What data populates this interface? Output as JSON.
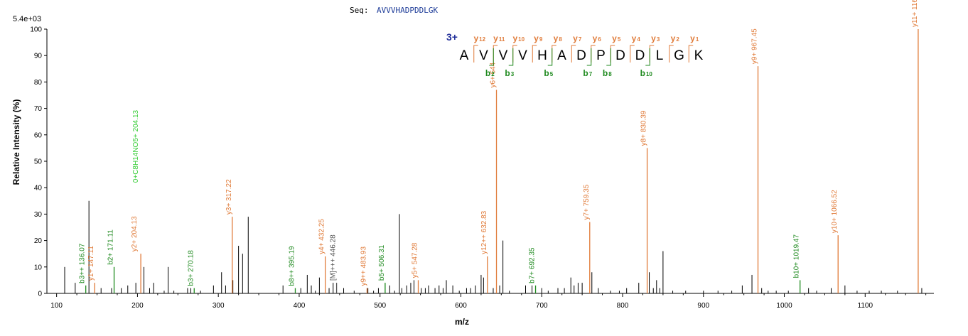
{
  "header": {
    "seq_label": "Seq:",
    "seq_value": "AVVVHADPDDLGK",
    "max_intensity": "5.4e+03"
  },
  "colors": {
    "y_ion": "#e07b39",
    "b_ion": "#1f8a1f",
    "b_ion_light": "#33cc33",
    "other": "#000000",
    "internal": "#555555"
  },
  "chart_data": {
    "type": "bar",
    "title": "",
    "xlabel": "m/z",
    "ylabel": "Relative   Intensity (%)",
    "xlim": [
      88,
      1185
    ],
    "ylim": [
      0,
      100
    ],
    "x_ticks": [
      100,
      200,
      300,
      400,
      500,
      600,
      700,
      800,
      900,
      1000,
      1100
    ],
    "y_ticks": [
      0,
      10,
      20,
      30,
      40,
      50,
      60,
      70,
      80,
      90,
      100
    ],
    "grid": false,
    "labeled_peaks": [
      {
        "mz": 136.07,
        "intensity": 3,
        "label": "b3++ 136.07",
        "ion": "b"
      },
      {
        "mz": 147.11,
        "intensity": 4,
        "label": "y1+ 147.11",
        "ion": "y"
      },
      {
        "mz": 171.11,
        "intensity": 10,
        "label": "b2+ 171.11",
        "ion": "b"
      },
      {
        "mz": 204.13,
        "intensity": 15,
        "label": "y2+ 204.13",
        "ion": "y"
      },
      {
        "mz": 204.13,
        "intensity": 15,
        "label": "0+C8H14NO5+ 204.13",
        "ion": "b_light"
      },
      {
        "mz": 270.18,
        "intensity": 2,
        "label": "b3+ 270.18",
        "ion": "b"
      },
      {
        "mz": 317.22,
        "intensity": 29,
        "label": "y3+ 317.22",
        "ion": "y"
      },
      {
        "mz": 395.19,
        "intensity": 2,
        "label": "b8++ 395.19",
        "ion": "b"
      },
      {
        "mz": 432.25,
        "intensity": 14,
        "label": "y4+ 432.25",
        "ion": "y"
      },
      {
        "mz": 446.28,
        "intensity": 4,
        "label": "[M]+++ 446.28",
        "ion": "internal"
      },
      {
        "mz": 483.93,
        "intensity": 2,
        "label": "y9++ 483.93",
        "ion": "y"
      },
      {
        "mz": 506.31,
        "intensity": 4,
        "label": "b5+ 506.31",
        "ion": "b"
      },
      {
        "mz": 547.28,
        "intensity": 5,
        "label": "y5+ 547.28",
        "ion": "y"
      },
      {
        "mz": 632.83,
        "intensity": 14,
        "label": "y12++ 632.83",
        "ion": "y"
      },
      {
        "mz": 644.0,
        "intensity": 77,
        "label": "y6+ 644",
        "ion": "y"
      },
      {
        "mz": 692.35,
        "intensity": 3,
        "label": "b7+ 692.35",
        "ion": "b"
      },
      {
        "mz": 759.35,
        "intensity": 27,
        "label": "y7+ 759.35",
        "ion": "y"
      },
      {
        "mz": 830.39,
        "intensity": 55,
        "label": "y8+ 830.39",
        "ion": "y"
      },
      {
        "mz": 967.45,
        "intensity": 86,
        "label": "y9+ 967.45",
        "ion": "y"
      },
      {
        "mz": 1019.47,
        "intensity": 5,
        "label": "b10+ 1019.47",
        "ion": "b"
      },
      {
        "mz": 1066.52,
        "intensity": 22,
        "label": "y10+ 1066.52",
        "ion": "y"
      },
      {
        "mz": 1165.59,
        "intensity": 100,
        "label": "y11+ 1165.59",
        "ion": "y"
      }
    ],
    "unlabeled_peaks": [
      [
        110,
        10
      ],
      [
        123,
        4
      ],
      [
        140,
        35
      ],
      [
        155,
        2
      ],
      [
        168,
        2
      ],
      [
        180,
        2
      ],
      [
        188,
        3
      ],
      [
        198,
        4
      ],
      [
        208,
        10
      ],
      [
        215,
        2
      ],
      [
        220,
        4
      ],
      [
        233,
        1
      ],
      [
        238,
        10
      ],
      [
        245,
        1
      ],
      [
        262,
        2
      ],
      [
        266,
        2
      ],
      [
        278,
        1
      ],
      [
        294,
        3
      ],
      [
        304,
        8
      ],
      [
        309,
        3
      ],
      [
        318,
        5
      ],
      [
        325,
        18
      ],
      [
        330,
        15
      ],
      [
        337,
        29
      ],
      [
        380,
        3
      ],
      [
        402,
        2
      ],
      [
        410,
        7
      ],
      [
        415,
        3
      ],
      [
        420,
        1
      ],
      [
        425,
        6
      ],
      [
        437,
        2
      ],
      [
        442,
        4
      ],
      [
        455,
        2
      ],
      [
        468,
        1
      ],
      [
        485,
        2
      ],
      [
        492,
        1
      ],
      [
        498,
        2
      ],
      [
        512,
        3
      ],
      [
        518,
        1
      ],
      [
        524,
        30
      ],
      [
        527,
        2
      ],
      [
        533,
        3
      ],
      [
        538,
        4
      ],
      [
        542,
        5
      ],
      [
        551,
        2
      ],
      [
        556,
        2
      ],
      [
        560,
        3
      ],
      [
        568,
        2
      ],
      [
        573,
        3
      ],
      [
        578,
        2
      ],
      [
        582,
        5
      ],
      [
        590,
        3
      ],
      [
        598,
        1
      ],
      [
        607,
        2
      ],
      [
        612,
        2
      ],
      [
        618,
        3
      ],
      [
        625,
        7
      ],
      [
        628,
        6
      ],
      [
        640,
        2
      ],
      [
        648,
        3
      ],
      [
        652,
        20
      ],
      [
        660,
        1
      ],
      [
        680,
        3
      ],
      [
        688,
        3
      ],
      [
        700,
        2
      ],
      [
        708,
        1
      ],
      [
        720,
        2
      ],
      [
        728,
        2
      ],
      [
        736,
        6
      ],
      [
        740,
        3
      ],
      [
        745,
        4
      ],
      [
        750,
        4
      ],
      [
        762,
        8
      ],
      [
        770,
        2
      ],
      [
        785,
        1
      ],
      [
        796,
        1
      ],
      [
        805,
        2
      ],
      [
        820,
        4
      ],
      [
        833,
        8
      ],
      [
        838,
        2
      ],
      [
        842,
        5
      ],
      [
        846,
        2
      ],
      [
        850,
        16
      ],
      [
        862,
        1
      ],
      [
        878,
        1
      ],
      [
        900,
        1
      ],
      [
        918,
        1
      ],
      [
        935,
        1
      ],
      [
        948,
        3
      ],
      [
        960,
        7
      ],
      [
        972,
        2
      ],
      [
        980,
        1
      ],
      [
        990,
        1
      ],
      [
        1005,
        1
      ],
      [
        1030,
        2
      ],
      [
        1040,
        1
      ],
      [
        1058,
        2
      ],
      [
        1075,
        3
      ],
      [
        1090,
        1
      ],
      [
        1105,
        1
      ],
      [
        1120,
        1
      ],
      [
        1140,
        1
      ],
      [
        1170,
        2
      ]
    ],
    "fragment_map": {
      "charge": "3+",
      "residues": [
        "A",
        "V",
        "V",
        "V",
        "H",
        "A",
        "D",
        "P",
        "D",
        "D",
        "L",
        "G",
        "K"
      ],
      "y_ions": [
        {
          "name": "y",
          "num": "12",
          "pos": 1
        },
        {
          "name": "y",
          "num": "11",
          "pos": 2
        },
        {
          "name": "y",
          "num": "10",
          "pos": 3
        },
        {
          "name": "y",
          "num": "9",
          "pos": 4
        },
        {
          "name": "y",
          "num": "8",
          "pos": 5
        },
        {
          "name": "y",
          "num": "7",
          "pos": 6
        },
        {
          "name": "y",
          "num": "6",
          "pos": 7
        },
        {
          "name": "y",
          "num": "5",
          "pos": 8
        },
        {
          "name": "y",
          "num": "4",
          "pos": 9
        },
        {
          "name": "y",
          "num": "3",
          "pos": 10
        },
        {
          "name": "y",
          "num": "2",
          "pos": 11
        },
        {
          "name": "y",
          "num": "1",
          "pos": 12
        }
      ],
      "b_ions": [
        {
          "name": "b",
          "num": "2",
          "pos": 2
        },
        {
          "name": "b",
          "num": "3",
          "pos": 3
        },
        {
          "name": "b",
          "num": "5",
          "pos": 5
        },
        {
          "name": "b",
          "num": "7",
          "pos": 7
        },
        {
          "name": "b",
          "num": "8",
          "pos": 8
        },
        {
          "name": "b",
          "num": "10",
          "pos": 10
        }
      ]
    }
  }
}
